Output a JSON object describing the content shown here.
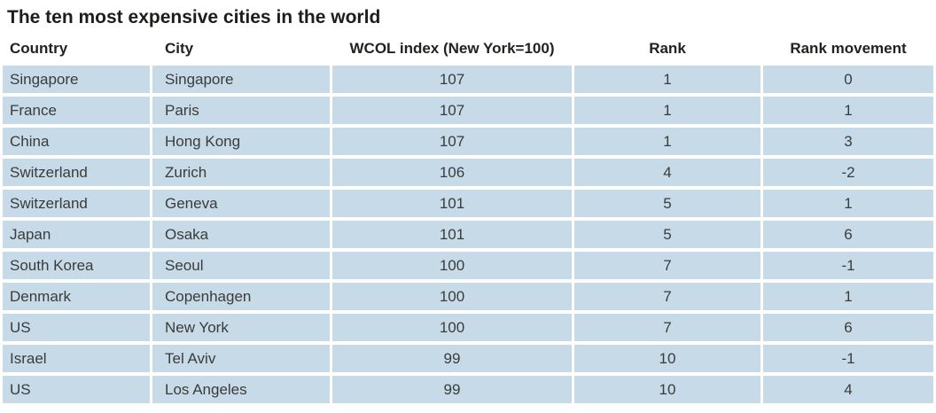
{
  "title": "The ten most expensive cities in the world",
  "chart_data": {
    "type": "table",
    "title": "The ten most expensive cities in the world",
    "columns": [
      {
        "label": "Country",
        "align": "left",
        "key": "country"
      },
      {
        "label": "City",
        "align": "left",
        "key": "city"
      },
      {
        "label": "WCOL index (New York=100)",
        "align": "center",
        "key": "wcol-index"
      },
      {
        "label": "Rank",
        "align": "center",
        "key": "rank"
      },
      {
        "label": "Rank movement",
        "align": "center",
        "key": "rank-movement"
      }
    ],
    "rows": [
      {
        "country": "Singapore",
        "city": "Singapore",
        "wcol_index": 107,
        "rank": 1,
        "rank_movement": 0
      },
      {
        "country": "France",
        "city": "Paris",
        "wcol_index": 107,
        "rank": 1,
        "rank_movement": 1
      },
      {
        "country": "China",
        "city": "Hong Kong",
        "wcol_index": 107,
        "rank": 1,
        "rank_movement": 3
      },
      {
        "country": "Switzerland",
        "city": "Zurich",
        "wcol_index": 106,
        "rank": 4,
        "rank_movement": -2
      },
      {
        "country": "Switzerland",
        "city": "Geneva",
        "wcol_index": 101,
        "rank": 5,
        "rank_movement": 1
      },
      {
        "country": "Japan",
        "city": "Osaka",
        "wcol_index": 101,
        "rank": 5,
        "rank_movement": 6
      },
      {
        "country": "South Korea",
        "city": "Seoul",
        "wcol_index": 100,
        "rank": 7,
        "rank_movement": -1
      },
      {
        "country": "Denmark",
        "city": "Copenhagen",
        "wcol_index": 100,
        "rank": 7,
        "rank_movement": 1
      },
      {
        "country": "US",
        "city": "New York",
        "wcol_index": 100,
        "rank": 7,
        "rank_movement": 6
      },
      {
        "country": "Israel",
        "city": "Tel Aviv",
        "wcol_index": 99,
        "rank": 10,
        "rank_movement": -1
      },
      {
        "country": "US",
        "city": "Los Angeles",
        "wcol_index": 99,
        "rank": 10,
        "rank_movement": 4
      }
    ]
  },
  "colors": {
    "row_background": "#c6dbe7",
    "body_text": "#3b3b3b",
    "header_text": "#222220",
    "title_text": "#1d1d1b",
    "page_background": "#ffffff"
  }
}
